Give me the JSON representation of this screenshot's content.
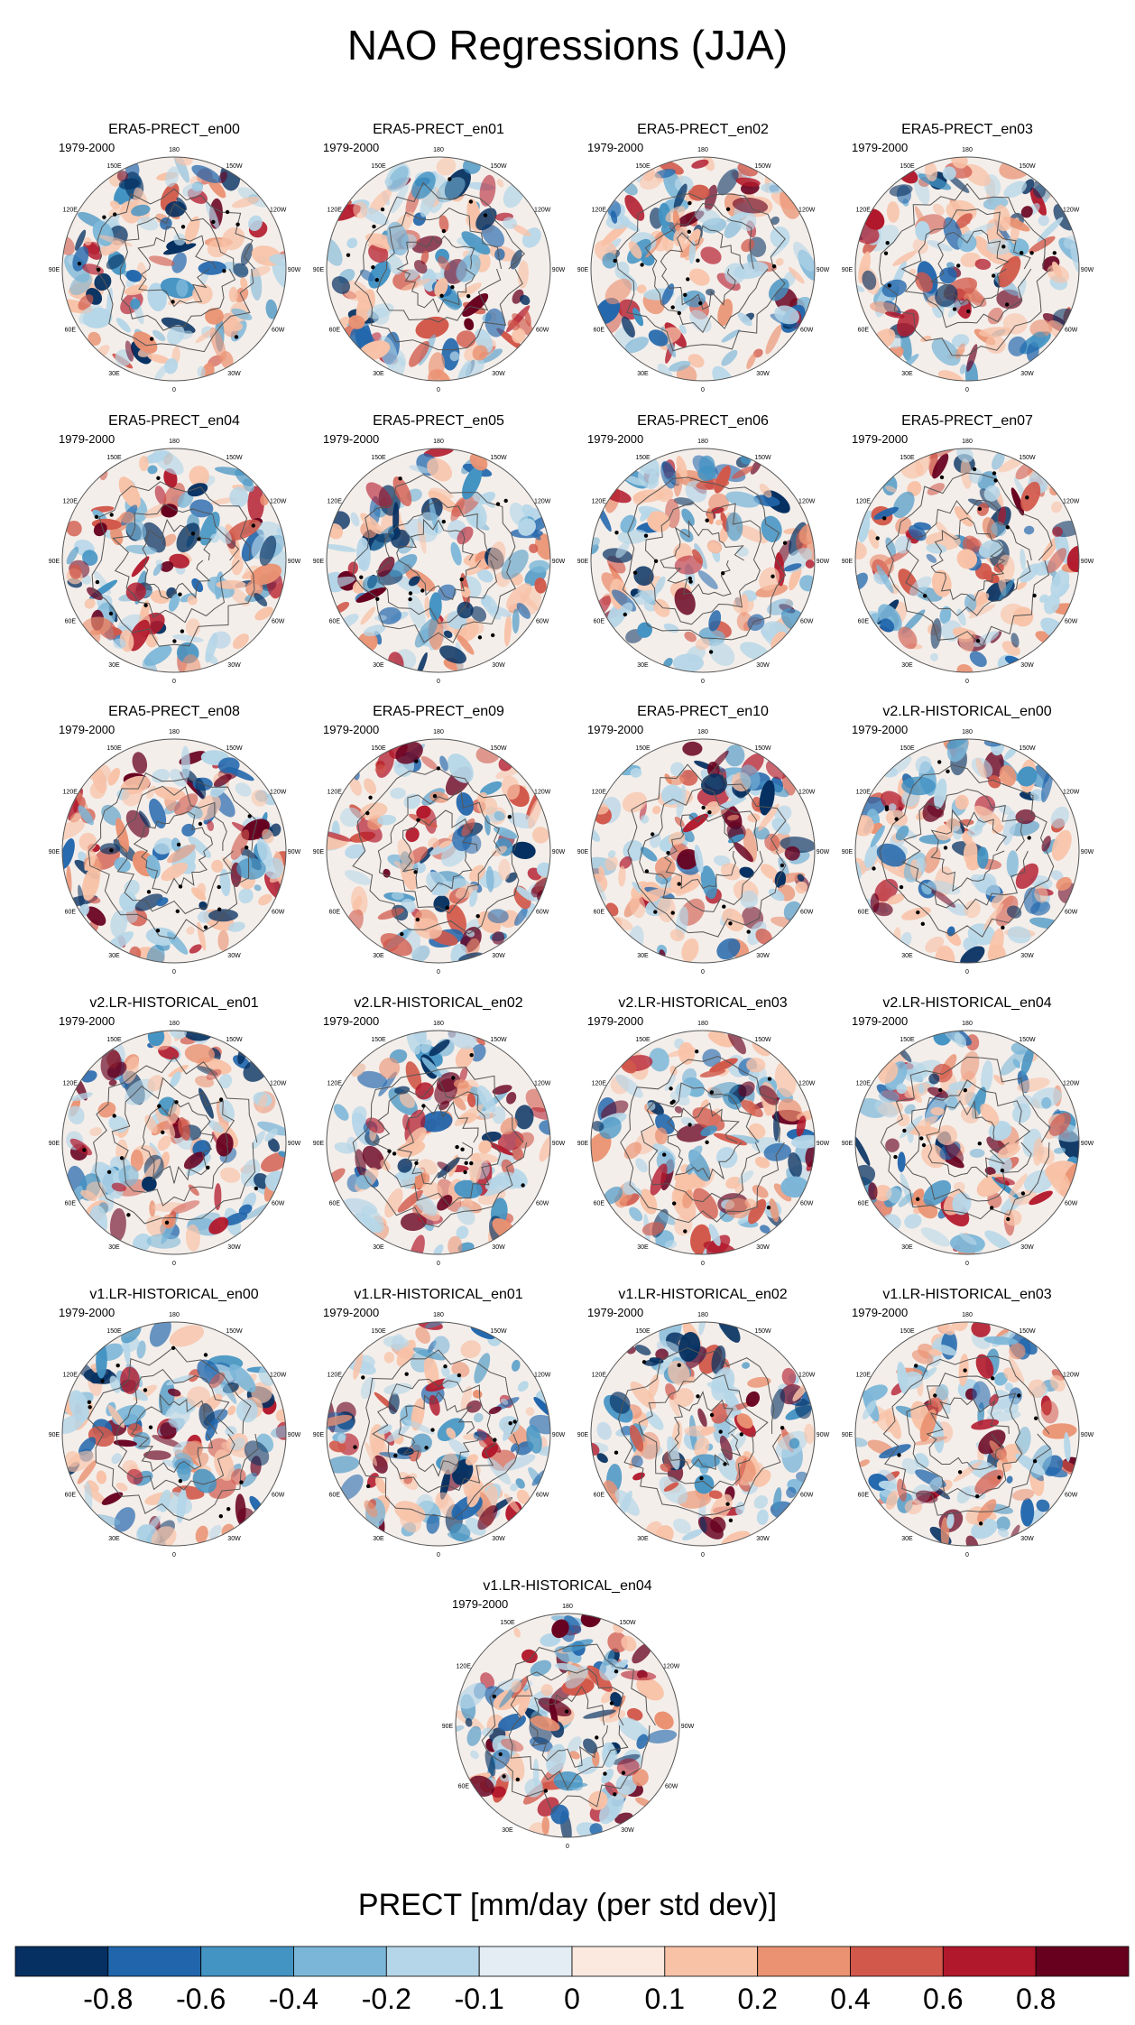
{
  "figure": {
    "title": "NAO Regressions (JJA)",
    "colorbar_label": "PRECT [mm/day (per std dev)]"
  },
  "map_labels": {
    "lon_ticks": [
      "180",
      "150E",
      "120E",
      "90E",
      "60E",
      "30E",
      "0",
      "30W",
      "60W",
      "90W",
      "120W",
      "150W"
    ]
  },
  "panels": [
    {
      "title": "ERA5-PRECT_en00",
      "period": "1979-2000"
    },
    {
      "title": "ERA5-PRECT_en01",
      "period": "1979-2000"
    },
    {
      "title": "ERA5-PRECT_en02",
      "period": "1979-2000"
    },
    {
      "title": "ERA5-PRECT_en03",
      "period": "1979-2000"
    },
    {
      "title": "ERA5-PRECT_en04",
      "period": "1979-2000"
    },
    {
      "title": "ERA5-PRECT_en05",
      "period": "1979-2000"
    },
    {
      "title": "ERA5-PRECT_en06",
      "period": "1979-2000"
    },
    {
      "title": "ERA5-PRECT_en07",
      "period": "1979-2000"
    },
    {
      "title": "ERA5-PRECT_en08",
      "period": "1979-2000"
    },
    {
      "title": "ERA5-PRECT_en09",
      "period": "1979-2000"
    },
    {
      "title": "ERA5-PRECT_en10",
      "period": "1979-2000"
    },
    {
      "title": "v2.LR-HISTORICAL_en00",
      "period": "1979-2000"
    },
    {
      "title": "v2.LR-HISTORICAL_en01",
      "period": "1979-2000"
    },
    {
      "title": "v2.LR-HISTORICAL_en02",
      "period": "1979-2000"
    },
    {
      "title": "v2.LR-HISTORICAL_en03",
      "period": "1979-2000"
    },
    {
      "title": "v2.LR-HISTORICAL_en04",
      "period": "1979-2000"
    },
    {
      "title": "v1.LR-HISTORICAL_en00",
      "period": "1979-2000"
    },
    {
      "title": "v1.LR-HISTORICAL_en01",
      "period": "1979-2000"
    },
    {
      "title": "v1.LR-HISTORICAL_en02",
      "period": "1979-2000"
    },
    {
      "title": "v1.LR-HISTORICAL_en03",
      "period": "1979-2000"
    },
    {
      "title": "v1.LR-HISTORICAL_en04",
      "period": "1979-2000"
    }
  ],
  "colorbar": {
    "colors": [
      "#053061",
      "#2166ac",
      "#4393c3",
      "#7bb6d8",
      "#b5d6e8",
      "#e3edf3",
      "#fbe8df",
      "#f8c2a7",
      "#ea9272",
      "#d1584a",
      "#b2182b",
      "#67001f"
    ],
    "tick_labels": [
      "-0.8",
      "-0.6",
      "-0.4",
      "-0.2",
      "-0.1",
      "0",
      "0.1",
      "0.2",
      "0.4",
      "0.6",
      "0.8"
    ]
  }
}
